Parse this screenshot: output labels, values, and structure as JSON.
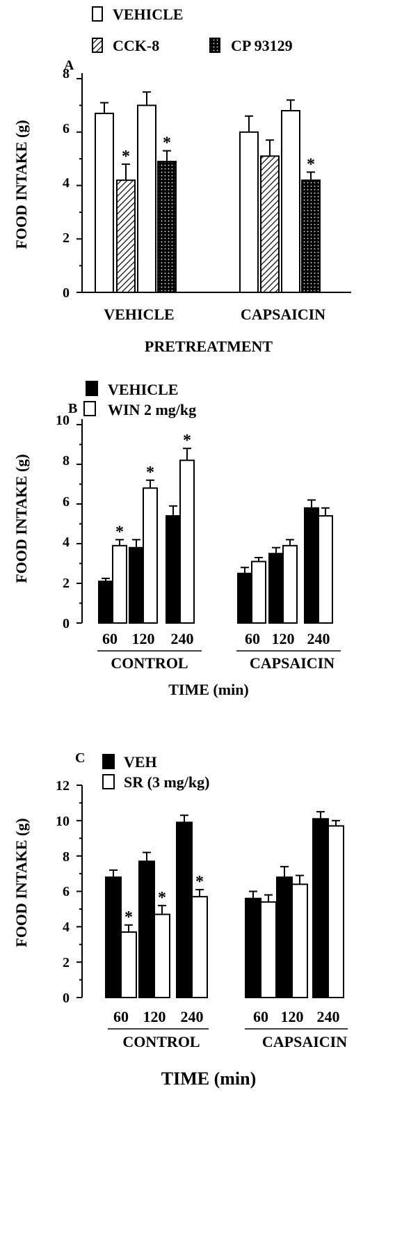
{
  "chart_data": [
    {
      "type": "bar",
      "panel_label": "A",
      "categories": [
        "VEHICLE",
        "CAPSAICIN"
      ],
      "xlabel": "PRETREATMENT",
      "ylabel": "FOOD INTAKE (g)",
      "ylim": [
        0,
        8
      ],
      "yticks": [
        0,
        2,
        4,
        6,
        8
      ],
      "legend": [
        {
          "label": "VEHICLE",
          "fill": "white"
        },
        {
          "label": "CCK-8",
          "fill": "hatch"
        },
        {
          "label": "CP 93129",
          "fill": "dots"
        }
      ],
      "bars": [
        {
          "group": 0,
          "fill": "white",
          "value": 6.7,
          "error": 0.4,
          "sig": false
        },
        {
          "group": 0,
          "fill": "hatch",
          "value": 4.2,
          "error": 0.6,
          "sig": true
        },
        {
          "group": 0,
          "fill": "white",
          "value": 7.0,
          "error": 0.5,
          "sig": false
        },
        {
          "group": 0,
          "fill": "dots",
          "value": 4.9,
          "error": 0.4,
          "sig": true
        },
        {
          "group": 1,
          "fill": "white",
          "value": 6.0,
          "error": 0.6,
          "sig": false
        },
        {
          "group": 1,
          "fill": "hatch",
          "value": 5.1,
          "error": 0.6,
          "sig": false
        },
        {
          "group": 1,
          "fill": "white",
          "value": 6.8,
          "error": 0.4,
          "sig": false
        },
        {
          "group": 1,
          "fill": "dots",
          "value": 4.2,
          "error": 0.3,
          "sig": true
        }
      ],
      "sig_marker": "*"
    },
    {
      "type": "bar",
      "panel_label": "B",
      "ylabel": "FOOD INTAKE (g)",
      "xlabel": "TIME (min)",
      "ylim": [
        0,
        10
      ],
      "yticks": [
        0,
        2,
        4,
        6,
        8,
        10
      ],
      "legend": [
        {
          "label": "VEHICLE",
          "fill": "black"
        },
        {
          "label": "WIN 2 mg/kg",
          "fill": "white"
        }
      ],
      "groups": [
        "CONTROL",
        "CAPSAICIN"
      ],
      "time_points": [
        "60",
        "120",
        "240"
      ],
      "series": [
        {
          "legend_index": 0,
          "values": [
            2.1,
            3.8,
            5.4,
            2.5,
            3.5,
            5.8
          ],
          "errors": [
            0.15,
            0.4,
            0.5,
            0.3,
            0.3,
            0.4
          ],
          "sig": [
            false,
            false,
            false,
            false,
            false,
            false
          ]
        },
        {
          "legend_index": 1,
          "values": [
            3.9,
            6.8,
            8.2,
            3.1,
            3.9,
            5.4
          ],
          "errors": [
            0.3,
            0.4,
            0.6,
            0.2,
            0.3,
            0.4
          ],
          "sig": [
            true,
            true,
            true,
            false,
            false,
            false
          ]
        }
      ],
      "sig_marker": "*"
    },
    {
      "type": "bar",
      "panel_label": "C",
      "ylabel": "FOOD INTAKE (g)",
      "xlabel": "TIME (min)",
      "ylim": [
        0,
        12
      ],
      "yticks": [
        0,
        2,
        4,
        6,
        8,
        10,
        12
      ],
      "legend": [
        {
          "label": "VEH",
          "fill": "black"
        },
        {
          "label": "SR (3 mg/kg)",
          "fill": "white"
        }
      ],
      "groups": [
        "CONTROL",
        "CAPSAICIN"
      ],
      "time_points": [
        "60",
        "120",
        "240"
      ],
      "series": [
        {
          "legend_index": 0,
          "values": [
            6.8,
            7.7,
            9.9,
            5.6,
            6.8,
            10.1
          ],
          "errors": [
            0.4,
            0.5,
            0.4,
            0.4,
            0.6,
            0.4
          ],
          "sig": [
            false,
            false,
            false,
            false,
            false,
            false
          ]
        },
        {
          "legend_index": 1,
          "values": [
            3.7,
            4.7,
            5.7,
            5.4,
            6.4,
            9.7
          ],
          "errors": [
            0.4,
            0.5,
            0.4,
            0.4,
            0.5,
            0.3
          ],
          "sig": [
            true,
            true,
            true,
            false,
            false,
            false
          ]
        }
      ],
      "sig_marker": "*"
    }
  ]
}
